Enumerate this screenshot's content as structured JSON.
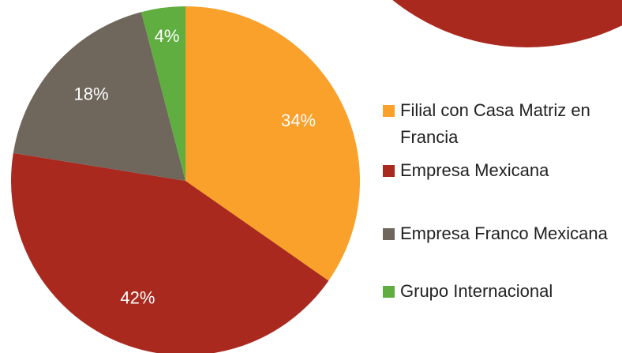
{
  "chart_data": {
    "type": "pie",
    "categories": [
      "Filial con Casa Matriz en Francia",
      "Empresa Mexicana",
      "Empresa Franco Mexicana",
      "Grupo Internacional"
    ],
    "values": [
      34,
      42,
      18,
      4
    ],
    "value_labels": [
      "34%",
      "42%",
      "18%",
      "4%"
    ],
    "colors": [
      "#F9A12A",
      "#A9291F",
      "#6F675C",
      "#5FAE3F"
    ],
    "legend": "right"
  }
}
